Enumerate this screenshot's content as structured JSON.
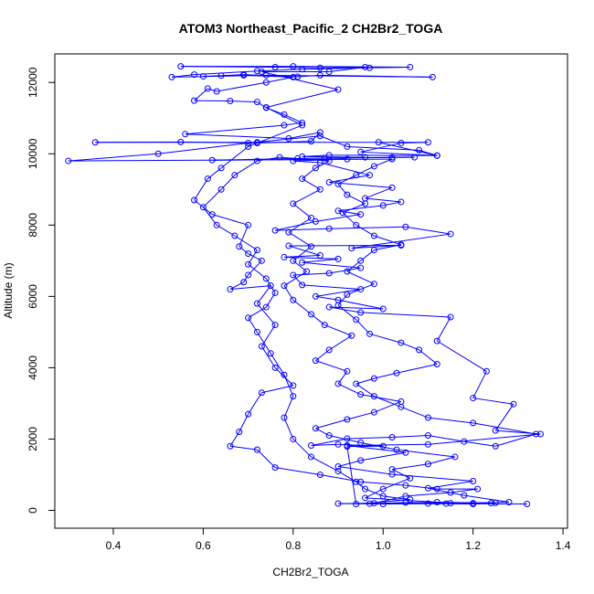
{
  "chart_data": {
    "type": "line",
    "title": "ATOM3 Northeast_Pacific_2 CH2Br2_TOGA",
    "xlabel": "CH2Br2_TOGA",
    "ylabel": "Altitude (m)",
    "xlim": [
      0.27,
      1.41
    ],
    "ylim": [
      -500,
      12800
    ],
    "xticks": [
      0.4,
      0.6,
      0.8,
      1.0,
      1.2,
      1.4
    ],
    "xtick_labels": [
      "0.4",
      "0.6",
      "0.8",
      "1.0",
      "1.2",
      "1.4"
    ],
    "yticks": [
      0,
      2000,
      4000,
      6000,
      8000,
      10000,
      12000
    ],
    "ytick_labels": [
      "0",
      "2000",
      "4000",
      "6000",
      "8000",
      "10000",
      "12000"
    ],
    "grid": false,
    "series_color": "#0000ff",
    "marker": "open-circle",
    "series": [
      {
        "points": [
          [
            1.32,
            180
          ],
          [
            1.1,
            190
          ],
          [
            1.15,
            200
          ],
          [
            1.25,
            210
          ],
          [
            1.05,
            220
          ],
          [
            0.97,
            190
          ],
          [
            1.2,
            200
          ],
          [
            1.28,
            230
          ],
          [
            1.18,
            420
          ],
          [
            1.1,
            620
          ],
          [
            1.2,
            820
          ],
          [
            1.02,
            1010
          ],
          [
            0.9,
            1230
          ],
          [
            0.95,
            1400
          ],
          [
            1.05,
            1620
          ],
          [
            0.92,
            1820
          ],
          [
            1.1,
            1850
          ],
          [
            1.35,
            2140
          ],
          [
            1.25,
            2240
          ],
          [
            1.29,
            2980
          ],
          [
            1.2,
            3150
          ],
          [
            1.23,
            3900
          ],
          [
            1.12,
            4750
          ],
          [
            1.15,
            5420
          ],
          [
            0.95,
            5550
          ],
          [
            0.88,
            5700
          ],
          [
            1.0,
            5650
          ],
          [
            0.9,
            5900
          ],
          [
            0.85,
            6000
          ],
          [
            0.95,
            6200
          ],
          [
            0.82,
            6320
          ],
          [
            0.8,
            6600
          ],
          [
            0.88,
            6650
          ],
          [
            0.95,
            6800
          ],
          [
            0.82,
            6950
          ],
          [
            0.9,
            7050
          ],
          [
            0.78,
            7100
          ],
          [
            0.86,
            7150
          ],
          [
            0.79,
            7420
          ],
          [
            1.04,
            7430
          ],
          [
            0.93,
            7350
          ],
          [
            1.15,
            7750
          ],
          [
            1.05,
            7950
          ],
          [
            0.88,
            7900
          ],
          [
            0.76,
            7850
          ],
          [
            0.85,
            8100
          ],
          [
            0.95,
            8300
          ],
          [
            0.9,
            8400
          ],
          [
            1.0,
            8550
          ],
          [
            1.04,
            8650
          ],
          [
            0.96,
            8750
          ],
          [
            1.02,
            9050
          ],
          [
            0.88,
            9200
          ],
          [
            0.97,
            9400
          ],
          [
            0.86,
            9750
          ],
          [
            0.8,
            9800
          ],
          [
            0.92,
            9850
          ],
          [
            0.62,
            9820
          ],
          [
            0.81,
            9870
          ],
          [
            1.02,
            9900
          ],
          [
            1.07,
            9900
          ],
          [
            0.87,
            9880
          ],
          [
            0.96,
            9900
          ],
          [
            0.82,
            9920
          ],
          [
            0.88,
            9960
          ],
          [
            1.12,
            9950
          ],
          [
            0.95,
            10050
          ],
          [
            1.04,
            10300
          ],
          [
            1.1,
            10320
          ],
          [
            0.72,
            10320
          ],
          [
            0.36,
            10320
          ],
          [
            0.55,
            10330
          ],
          [
            0.72,
            10300
          ],
          [
            0.84,
            10350
          ],
          [
            0.86,
            10600
          ],
          [
            0.79,
            10430
          ],
          [
            0.56,
            10550
          ],
          [
            0.78,
            10800
          ],
          [
            0.82,
            10870
          ],
          [
            0.78,
            11100
          ],
          [
            0.74,
            11290
          ],
          [
            0.72,
            11450
          ],
          [
            0.66,
            11480
          ],
          [
            0.58,
            11490
          ],
          [
            0.61,
            11830
          ],
          [
            0.63,
            11750
          ],
          [
            0.74,
            12000
          ],
          [
            0.8,
            12150
          ],
          [
            0.69,
            12200
          ],
          [
            0.6,
            12170
          ],
          [
            0.64,
            12190
          ],
          [
            0.69,
            12220
          ],
          [
            0.81,
            12160
          ],
          [
            0.86,
            12200
          ],
          [
            1.11,
            12150
          ],
          [
            0.74,
            12200
          ],
          [
            0.53,
            12150
          ],
          [
            0.58,
            12220
          ],
          [
            0.72,
            12320
          ],
          [
            0.82,
            12370
          ],
          [
            0.97,
            12410
          ],
          [
            1.06,
            12430
          ],
          [
            0.8,
            12450
          ],
          [
            0.55,
            12450
          ],
          [
            0.76,
            12430
          ],
          [
            0.86,
            12410
          ],
          [
            0.96,
            12430
          ],
          [
            0.88,
            12300
          ],
          [
            0.73,
            12300
          ],
          [
            0.9,
            11800
          ],
          [
            0.74,
            11300
          ],
          [
            0.82,
            10800
          ],
          [
            0.7,
            10200
          ],
          [
            0.64,
            9600
          ],
          [
            0.61,
            9300
          ],
          [
            0.58,
            8700
          ],
          [
            0.62,
            8300
          ],
          [
            0.7,
            8000
          ],
          [
            0.68,
            7400
          ],
          [
            0.7,
            7200
          ],
          [
            0.73,
            7000
          ],
          [
            0.7,
            6600
          ],
          [
            0.69,
            6400
          ],
          [
            0.66,
            6200
          ],
          [
            0.75,
            6300
          ],
          [
            0.72,
            5800
          ],
          [
            0.76,
            5200
          ],
          [
            0.73,
            4600
          ],
          [
            0.76,
            4000
          ],
          [
            0.8,
            3500
          ],
          [
            0.73,
            3300
          ],
          [
            0.7,
            2700
          ],
          [
            0.68,
            2200
          ],
          [
            0.66,
            1800
          ],
          [
            0.72,
            1700
          ],
          [
            0.76,
            1200
          ],
          [
            0.86,
            1000
          ],
          [
            0.95,
            800
          ],
          [
            1.05,
            700
          ],
          [
            1.12,
            600
          ],
          [
            1.21,
            600
          ],
          [
            1.15,
            500
          ],
          [
            1.05,
            400
          ],
          [
            0.98,
            200
          ],
          [
            0.9,
            190
          ],
          [
            1.0,
            180
          ],
          [
            1.14,
            190
          ],
          [
            1.2,
            180
          ],
          [
            1.24,
            200
          ],
          [
            1.12,
            230
          ],
          [
            0.96,
            350
          ],
          [
            1.0,
            600
          ],
          [
            1.06,
            900
          ],
          [
            1.02,
            1150
          ],
          [
            1.1,
            1300
          ],
          [
            1.16,
            1500
          ],
          [
            1.03,
            1700
          ],
          [
            0.95,
            1900
          ],
          [
            0.88,
            2100
          ],
          [
            0.85,
            2300
          ],
          [
            0.92,
            2550
          ],
          [
            0.98,
            2750
          ],
          [
            1.04,
            3050
          ],
          [
            0.95,
            3250
          ],
          [
            0.9,
            3550
          ],
          [
            0.92,
            3900
          ],
          [
            0.85,
            4200
          ],
          [
            0.88,
            4500
          ],
          [
            0.93,
            4900
          ],
          [
            0.87,
            5200
          ],
          [
            0.84,
            5500
          ],
          [
            0.8,
            5900
          ],
          [
            0.78,
            6300
          ],
          [
            0.83,
            6700
          ],
          [
            0.8,
            7000
          ],
          [
            0.84,
            7400
          ],
          [
            0.79,
            7800
          ],
          [
            0.84,
            8200
          ],
          [
            0.8,
            8600
          ],
          [
            0.86,
            9000
          ],
          [
            0.82,
            9300
          ],
          [
            0.85,
            9600
          ],
          [
            0.88,
            9800
          ],
          [
            0.77,
            9900
          ],
          [
            0.72,
            9800
          ],
          [
            0.67,
            9400
          ],
          [
            0.64,
            9000
          ],
          [
            0.6,
            8500
          ],
          [
            0.63,
            8000
          ],
          [
            0.67,
            7700
          ],
          [
            0.72,
            7300
          ],
          [
            0.7,
            6900
          ],
          [
            0.74,
            6500
          ],
          [
            0.76,
            6100
          ],
          [
            0.74,
            5700
          ],
          [
            0.7,
            5400
          ],
          [
            0.72,
            5000
          ],
          [
            0.75,
            4400
          ],
          [
            0.78,
            3800
          ],
          [
            0.8,
            3200
          ],
          [
            0.78,
            2600
          ],
          [
            0.8,
            2000
          ],
          [
            0.84,
            1500
          ],
          [
            0.9,
            1100
          ],
          [
            0.94,
            800
          ],
          [
            0.96,
            600
          ],
          [
            1.0,
            400
          ],
          [
            1.06,
            300
          ],
          [
            0.94,
            180
          ],
          [
            0.92,
            1790
          ],
          [
            1.0,
            1800
          ],
          [
            0.9,
            1850
          ],
          [
            0.84,
            1820
          ],
          [
            0.92,
            2010
          ],
          [
            1.02,
            2050
          ],
          [
            1.1,
            2100
          ],
          [
            1.18,
            1930
          ],
          [
            1.25,
            1800
          ],
          [
            1.34,
            2140
          ],
          [
            1.2,
            2450
          ],
          [
            1.1,
            2600
          ],
          [
            1.04,
            2900
          ],
          [
            0.98,
            3200
          ],
          [
            0.94,
            3550
          ],
          [
            0.98,
            3700
          ],
          [
            1.03,
            3850
          ],
          [
            1.12,
            4100
          ],
          [
            1.08,
            4500
          ],
          [
            1.04,
            4700
          ],
          [
            0.97,
            4950
          ],
          [
            0.94,
            5350
          ],
          [
            0.9,
            5750
          ],
          [
            0.92,
            6050
          ],
          [
            0.98,
            6350
          ],
          [
            0.92,
            6700
          ],
          [
            0.95,
            7000
          ],
          [
            0.98,
            7300
          ],
          [
            1.04,
            7450
          ],
          [
            0.98,
            7700
          ],
          [
            0.94,
            8000
          ],
          [
            0.91,
            8350
          ],
          [
            0.96,
            8600
          ],
          [
            0.92,
            8850
          ],
          [
            0.9,
            9150
          ],
          [
            0.94,
            9400
          ],
          [
            0.98,
            9650
          ],
          [
            1.02,
            9850
          ],
          [
            0.3,
            9800
          ],
          [
            0.5,
            10000
          ],
          [
            0.7,
            10300
          ],
          [
            0.86,
            10500
          ],
          [
            0.92,
            10200
          ],
          [
            1.08,
            10100
          ],
          [
            1.12,
            9950
          ],
          [
            0.99,
            10320
          ]
        ]
      }
    ]
  }
}
